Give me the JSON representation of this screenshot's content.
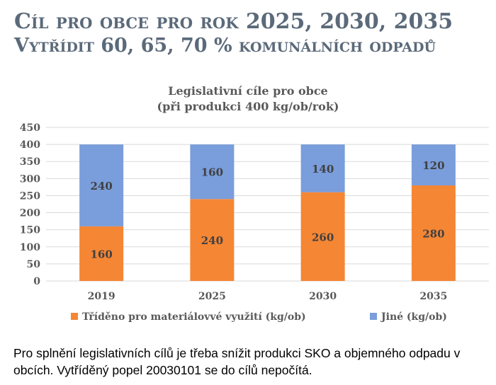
{
  "slide": {
    "title_line1": "Cíl pro obce pro rok 2025, 2030, 2035",
    "title_line2": "Vytřídit 60, 65, 70 % komunálních odpadů",
    "footer": "Pro splnění legislativních cílů je třeba snížit produkci SKO a objemného odpadu v obcích. Vytříděný popel 20030101 se do cílů nepočítá."
  },
  "colors": {
    "title": "#5b6a7a",
    "sorted": "#f58634",
    "other": "#7a9ddb",
    "grid": "#d9d9d9"
  },
  "chart_data": {
    "type": "bar",
    "stacked": true,
    "title": "Legislativní cíle pro obce",
    "subtitle": "(při produkci 400 kg/ob/rok)",
    "categories": [
      "2019",
      "2025",
      "2030",
      "2035"
    ],
    "series": [
      {
        "name": "Tříděno pro materiálovvé využití (kg/ob)",
        "values": [
          160,
          240,
          260,
          280
        ]
      },
      {
        "name": "Jiné (kg/ob)",
        "values": [
          240,
          160,
          140,
          120
        ]
      }
    ],
    "yticks": [
      "0",
      "50",
      "100",
      "150",
      "200",
      "250",
      "300",
      "350",
      "400",
      "450"
    ],
    "ylim": [
      0,
      450
    ],
    "grid": true,
    "legend_position": "bottom",
    "data_labels": true
  }
}
